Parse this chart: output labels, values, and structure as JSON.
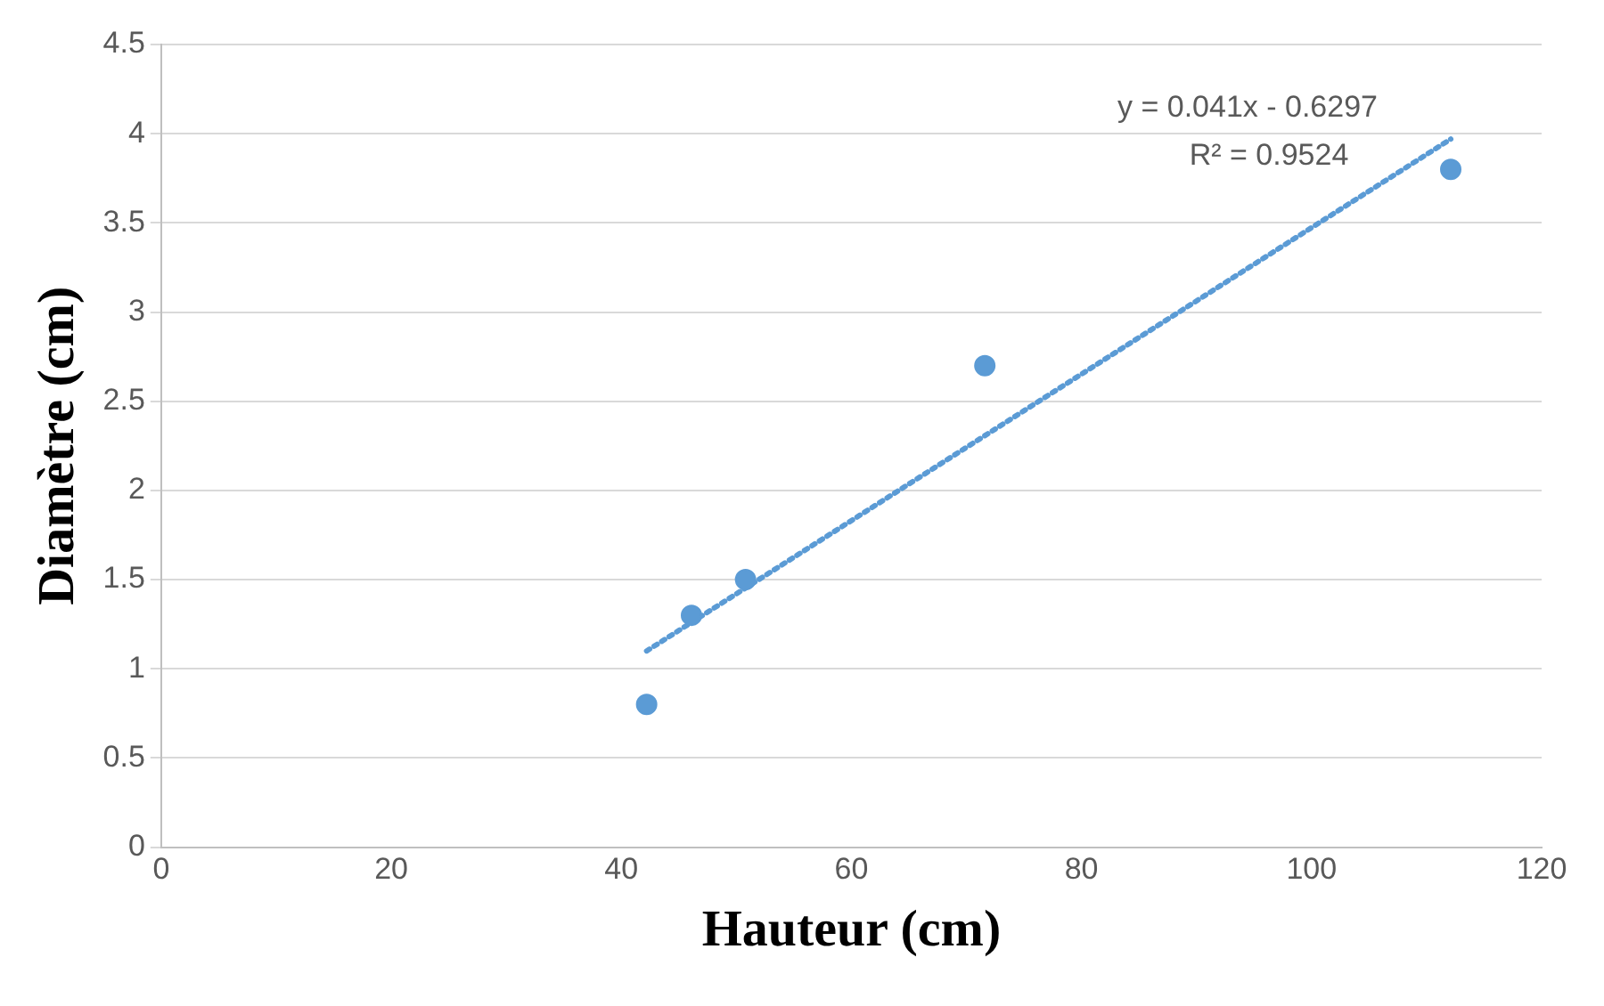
{
  "chart_data": {
    "type": "scatter",
    "xlabel": "Hauteur (cm)",
    "ylabel": "Diamètre (cm)",
    "xlim": [
      0,
      120
    ],
    "xticks": [
      0,
      20,
      40,
      60,
      80,
      100,
      120
    ],
    "ylim": [
      0,
      4.5
    ],
    "yticks": [
      0,
      0.5,
      1,
      1.5,
      2,
      2.5,
      3,
      3.5,
      4,
      4.5
    ],
    "grid": "y",
    "legend": false,
    "marker": "circle",
    "series": [
      {
        "type": "scatter",
        "color": "#5b9bd5",
        "x": [
          42.2,
          46.1,
          50.8,
          71.6,
          112.1
        ],
        "values": [
          0.8,
          1.3,
          1.5,
          2.7,
          3.8
        ]
      },
      {
        "type": "line",
        "color": "#5b9bd5",
        "line_style": "dotted",
        "marker": "none",
        "x": [
          42.2,
          112.1
        ],
        "values": [
          1.1,
          3.97
        ]
      }
    ],
    "annotations": [
      "y = 0.041x - 0.6297",
      "R² = 0.9524"
    ]
  }
}
